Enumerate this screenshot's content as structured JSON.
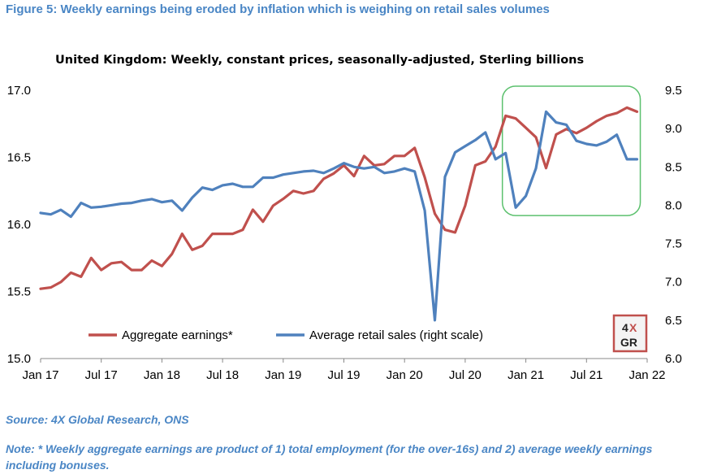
{
  "figure_title": "Figure 5: Weekly earnings being eroded by inflation which is weighing on retail sales volumes",
  "source": "Source: 4X Global Research, ONS",
  "note": "Note: * Weekly aggregate earnings are product of 1) total employment (for the over-16s) and 2) average weekly earnings including bonuses.",
  "logo": {
    "line1_left": "4",
    "line1_right": "X",
    "line2": "GR"
  },
  "colors": {
    "earnings": "#c0504d",
    "retail": "#4f81bd",
    "highlight_box": "#5cc16e",
    "title": "#4a86c5"
  },
  "chart_data": {
    "type": "line",
    "title": "United Kingdom: Weekly,  constant prices, seasonally-adjusted,  Sterling billions",
    "xlabel": "",
    "ylabel": "",
    "x_ticks": [
      "Jan 17",
      "Jul 17",
      "Jan 18",
      "Jul 18",
      "Jan 19",
      "Jul 19",
      "Jan 20",
      "Jul 20",
      "Jan 21",
      "Jul 21",
      "Jan 22"
    ],
    "x_start": "Jan 2017",
    "x_end": "Jan 2022",
    "ylim_left": [
      15.0,
      17.0
    ],
    "yticks_left": [
      "15.0",
      "15.5",
      "16.0",
      "16.5",
      "17.0"
    ],
    "ylim_right": [
      6.0,
      9.5
    ],
    "yticks_right": [
      "6.0",
      "6.5",
      "7.0",
      "7.5",
      "8.0",
      "8.5",
      "9.0",
      "9.5"
    ],
    "grid": false,
    "legend": "bottom-left",
    "highlight": {
      "from": "Nov 2020",
      "to": "Dec 2021",
      "y_from": 7.95,
      "y_to": 9.5,
      "axis": "right"
    },
    "series": [
      {
        "name": "Aggregate earnings*",
        "axis": "left",
        "color": "#c0504d",
        "values": [
          15.52,
          15.53,
          15.57,
          15.64,
          15.61,
          15.75,
          15.66,
          15.71,
          15.72,
          15.66,
          15.66,
          15.73,
          15.69,
          15.78,
          15.93,
          15.81,
          15.84,
          15.93,
          15.93,
          15.93,
          15.96,
          16.11,
          16.02,
          16.14,
          16.19,
          16.25,
          16.23,
          16.25,
          16.34,
          16.38,
          16.44,
          16.36,
          16.51,
          16.44,
          16.45,
          16.51,
          16.51,
          16.57,
          16.35,
          16.08,
          15.96,
          15.94,
          16.14,
          16.44,
          16.47,
          16.58,
          16.81,
          16.79,
          16.72,
          16.65,
          16.42,
          16.67,
          16.71,
          16.68,
          16.72,
          16.77,
          16.81,
          16.83,
          16.87,
          16.84
        ]
      },
      {
        "name": "Average retail sales (right scale)",
        "axis": "right",
        "color": "#4f81bd",
        "values": [
          7.9,
          7.88,
          7.94,
          7.85,
          8.03,
          7.97,
          7.98,
          8.0,
          8.02,
          8.03,
          8.06,
          8.08,
          8.04,
          8.06,
          7.93,
          8.1,
          8.23,
          8.2,
          8.26,
          8.28,
          8.24,
          8.24,
          8.36,
          8.36,
          8.4,
          8.42,
          8.44,
          8.45,
          8.42,
          8.48,
          8.55,
          8.5,
          8.48,
          8.5,
          8.42,
          8.44,
          8.48,
          8.44,
          7.93,
          6.5,
          8.37,
          8.69,
          8.77,
          8.85,
          8.95,
          8.6,
          8.68,
          7.97,
          8.12,
          8.48,
          9.22,
          9.08,
          9.05,
          8.84,
          8.8,
          8.78,
          8.83,
          8.92,
          8.6,
          8.6
        ]
      }
    ]
  }
}
